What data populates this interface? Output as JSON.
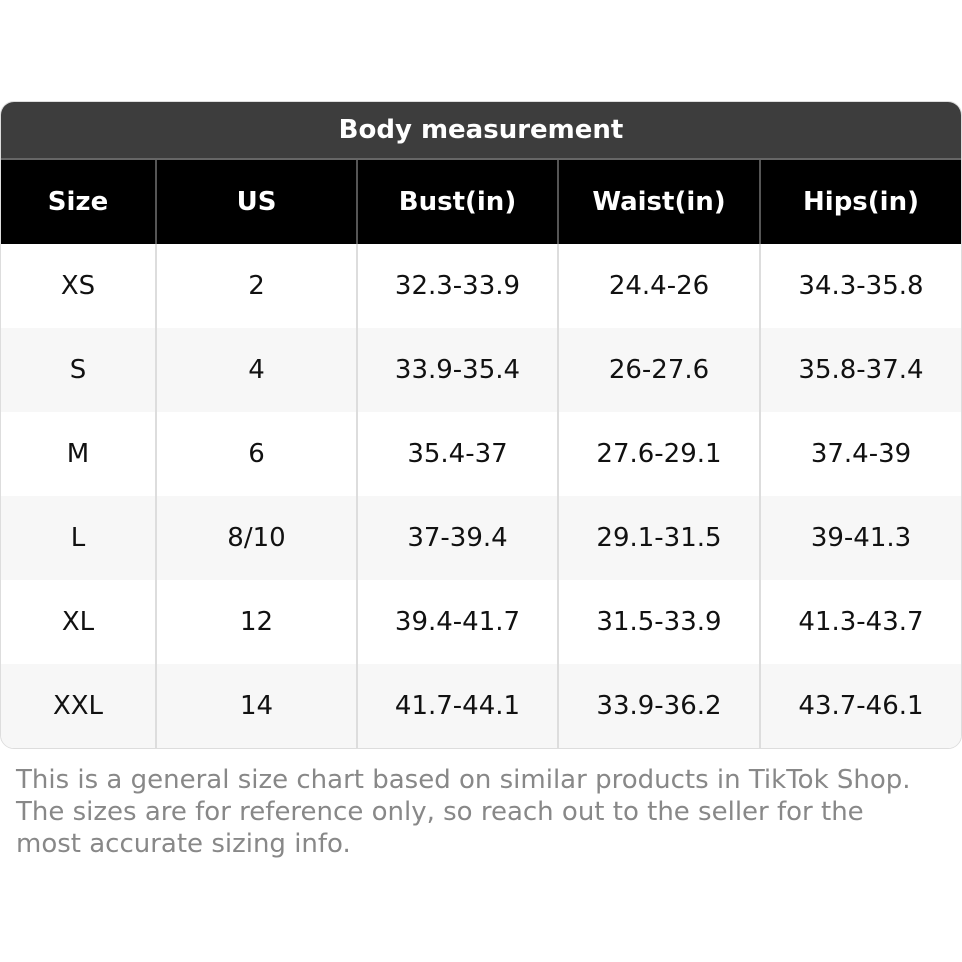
{
  "title": "Body measurement",
  "headers": [
    "Size",
    "US",
    "Bust(in)",
    "Waist(in)",
    "Hips(in)"
  ],
  "rows": [
    [
      "XS",
      "2",
      "32.3-33.9",
      "24.4-26",
      "34.3-35.8"
    ],
    [
      "S",
      "4",
      "33.9-35.4",
      "26-27.6",
      "35.8-37.4"
    ],
    [
      "M",
      "6",
      "35.4-37",
      "27.6-29.1",
      "37.4-39"
    ],
    [
      "L",
      "8/10",
      "37-39.4",
      "29.1-31.5",
      "39-41.3"
    ],
    [
      "XL",
      "12",
      "39.4-41.7",
      "31.5-33.9",
      "41.3-43.7"
    ],
    [
      "XXL",
      "14",
      "41.7-44.1",
      "33.9-36.2",
      "43.7-46.1"
    ]
  ],
  "note": "This is a general size chart based on similar products in TikTok Shop. The sizes are for reference only, so reach out to the seller for the most accurate sizing info."
}
